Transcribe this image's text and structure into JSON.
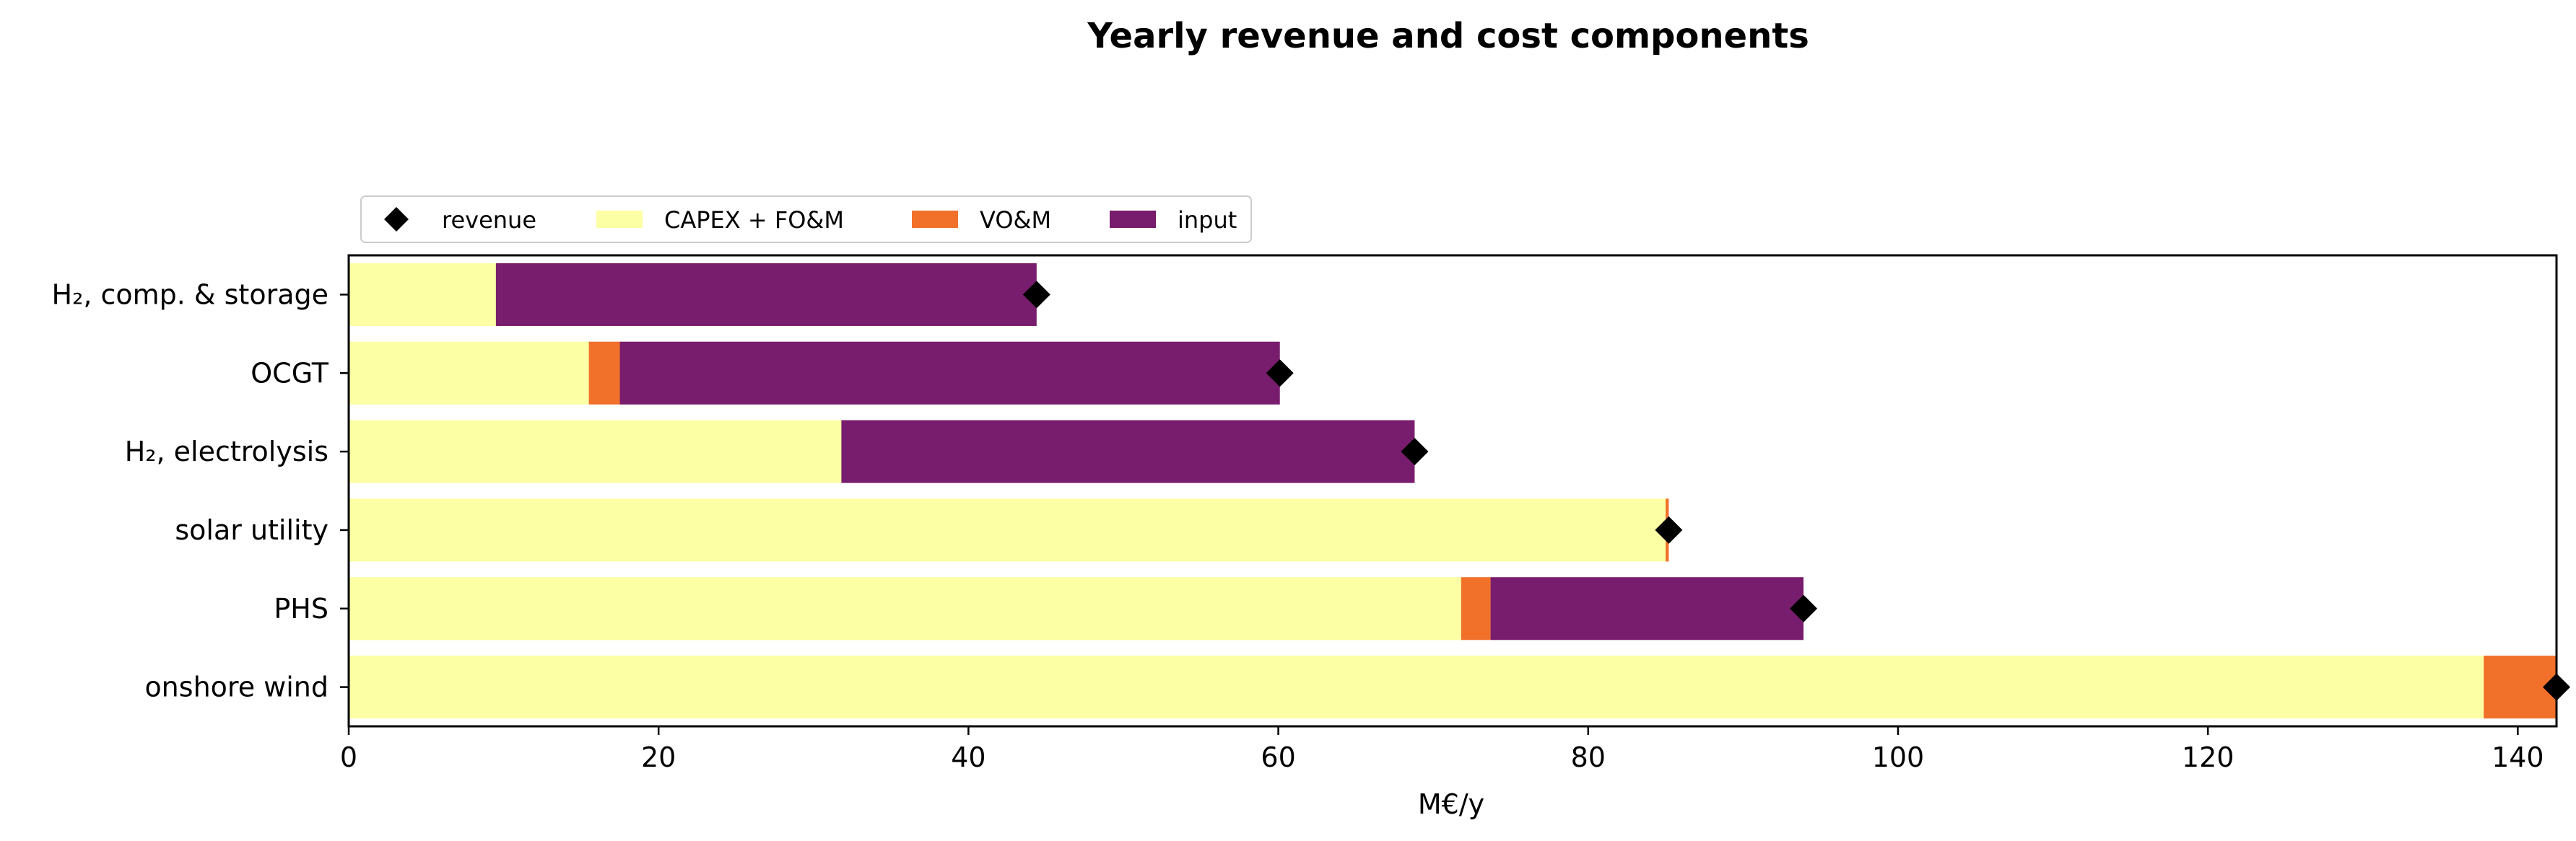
{
  "chart_data": {
    "type": "bar",
    "orientation": "horizontal",
    "stacked": true,
    "title": "Yearly revenue and cost components",
    "xlabel": "M€/y",
    "ylabel": "",
    "xlim": [
      0,
      142.5
    ],
    "xticks": [
      0,
      20,
      40,
      60,
      80,
      100,
      120,
      140
    ],
    "categories": [
      "H₂, comp. & storage",
      "OCGT",
      "H₂, electrolysis",
      "solar utility",
      "PHS",
      "onshore wind"
    ],
    "series": [
      {
        "name": "CAPEX + FO&M",
        "color": "#fcffa4",
        "values": [
          9.5,
          15.5,
          31.8,
          85.0,
          71.8,
          137.8
        ]
      },
      {
        "name": "VO&M",
        "color": "#f1702a",
        "values": [
          0.0,
          2.0,
          0.0,
          0.2,
          1.9,
          4.7
        ]
      },
      {
        "name": "input",
        "color": "#781c6d",
        "values": [
          34.9,
          42.6,
          37.0,
          0.0,
          20.2,
          0.0
        ]
      }
    ],
    "markers": {
      "name": "revenue",
      "shape": "diamond",
      "color": "#000000",
      "values": [
        44.4,
        60.1,
        68.8,
        85.2,
        93.9,
        142.5
      ]
    },
    "legend": {
      "position": "top-left",
      "order": [
        "revenue",
        "CAPEX + FO&M",
        "VO&M",
        "input"
      ]
    },
    "grid": false
  }
}
